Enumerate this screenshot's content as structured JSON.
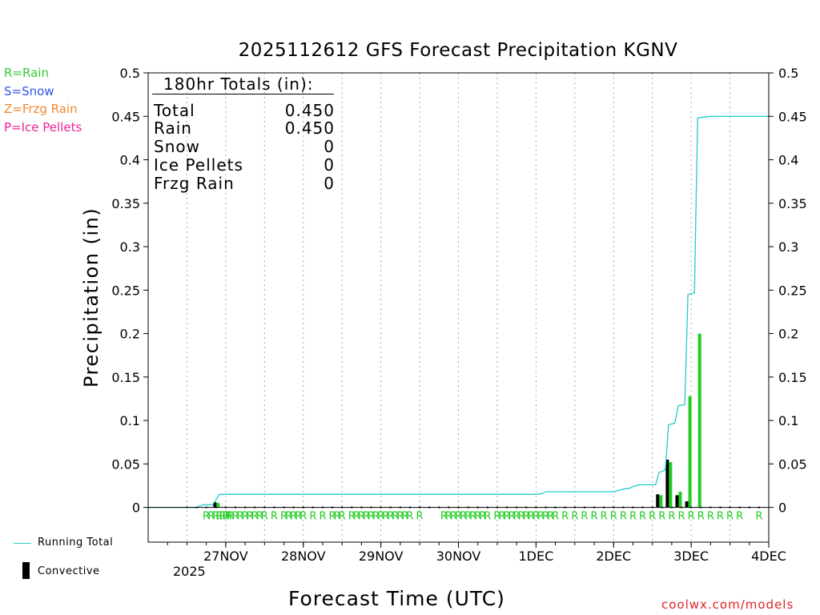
{
  "chart_data": {
    "type": "bar",
    "title": "2025112612 GFS Forecast Precipitation KGNV",
    "xlabel": "Forecast Time (UTC)",
    "ylabel": "Precipitation (in)",
    "ylim": [
      -0.04,
      0.5
    ],
    "xlim_hours": [
      -12,
      180
    ],
    "yticks": [
      "0",
      "0.05",
      "0.1",
      "0.15",
      "0.2",
      "0.25",
      "0.3",
      "0.35",
      "0.4",
      "0.45",
      "0.5"
    ],
    "ytick_values": [
      0,
      0.05,
      0.1,
      0.15,
      0.2,
      0.25,
      0.3,
      0.35,
      0.4,
      0.45,
      0.5
    ],
    "xticks": [
      {
        "label": "27NOV",
        "hour": 12
      },
      {
        "label": "28NOV",
        "hour": 36
      },
      {
        "label": "29NOV",
        "hour": 60
      },
      {
        "label": "30NOV",
        "hour": 84
      },
      {
        "label": "1DEC",
        "hour": 108
      },
      {
        "label": "2DEC",
        "hour": 132
      },
      {
        "label": "3DEC",
        "hour": 156
      },
      {
        "label": "4DEC",
        "hour": 180
      }
    ],
    "year_label": "2025",
    "legend": [
      {
        "label": "R=Rain",
        "color": "#33cc33"
      },
      {
        "label": "S=Snow",
        "color": "#3355ee"
      },
      {
        "label": "Z=Frzg Rain",
        "color": "#ee8833"
      },
      {
        "label": "P=Ice Pellets",
        "color": "#ee2299"
      }
    ],
    "bottom_legend": {
      "running_total": "Running Total",
      "convective": "Convective"
    },
    "totals_box": {
      "header": "180hr Totals (in):",
      "rows": [
        {
          "label": "Total",
          "value": "0.450"
        },
        {
          "label": "Rain",
          "value": "0.450"
        },
        {
          "label": "Snow",
          "value": "0"
        },
        {
          "label": "Ice Pellets",
          "value": "0"
        },
        {
          "label": "Frzg Rain",
          "value": "0"
        }
      ]
    },
    "series": [
      {
        "name": "Running Total",
        "color": "#22cccc",
        "points": [
          [
            -12,
            0
          ],
          [
            3,
            0
          ],
          [
            5,
            0.003
          ],
          [
            8,
            0.003
          ],
          [
            9,
            0.009
          ],
          [
            10,
            0.015
          ],
          [
            108,
            0.015
          ],
          [
            110,
            0.016
          ],
          [
            111,
            0.018
          ],
          [
            132,
            0.018
          ],
          [
            133,
            0.019
          ],
          [
            135,
            0.021
          ],
          [
            137,
            0.022
          ],
          [
            138,
            0.024
          ],
          [
            140,
            0.026
          ],
          [
            145,
            0.026
          ],
          [
            146,
            0.04
          ],
          [
            148,
            0.043
          ],
          [
            149,
            0.095
          ],
          [
            151,
            0.097
          ],
          [
            152,
            0.117
          ],
          [
            154,
            0.118
          ],
          [
            155,
            0.245
          ],
          [
            157,
            0.247
          ],
          [
            158,
            0.448
          ],
          [
            160,
            0.449
          ],
          [
            162,
            0.45
          ],
          [
            180,
            0.45
          ]
        ]
      },
      {
        "name": "Rain",
        "color": "#22cc22",
        "bars": [
          [
            9,
            0.005
          ],
          [
            146,
            0.014
          ],
          [
            149,
            0.052
          ],
          [
            152,
            0.018
          ],
          [
            155,
            0.128
          ],
          [
            158,
            0.2
          ]
        ]
      },
      {
        "name": "Convective",
        "color": "#000000",
        "bars": [
          [
            9,
            0.006
          ],
          [
            146,
            0.015
          ],
          [
            149,
            0.055
          ],
          [
            152,
            0.014
          ],
          [
            155,
            0.007
          ]
        ]
      }
    ],
    "ptype_markers": {
      "letter": "R",
      "color": "#22cc22",
      "hours": [
        6,
        7.5,
        9,
        10,
        11,
        12,
        12.8,
        13.5,
        15,
        16.5,
        18,
        19.5,
        21,
        22.5,
        24,
        27,
        30,
        31.5,
        33,
        34.5,
        36,
        39,
        42,
        45,
        46.5,
        48,
        51,
        52.5,
        54,
        55.5,
        57,
        58.5,
        60,
        61.5,
        63,
        64.5,
        66,
        67.5,
        69,
        72,
        79.5,
        81,
        82.5,
        84,
        85.5,
        87,
        88.5,
        90,
        91.5,
        93,
        96,
        97.5,
        99,
        100.5,
        102,
        103.5,
        105,
        106.5,
        108,
        109.5,
        111,
        112.5,
        114,
        117,
        120,
        123,
        126,
        129,
        132,
        135,
        138,
        141,
        144,
        147,
        150,
        153,
        156,
        159,
        162,
        165,
        168,
        171,
        177
      ]
    }
  },
  "watermark": "coolwx.com/models"
}
